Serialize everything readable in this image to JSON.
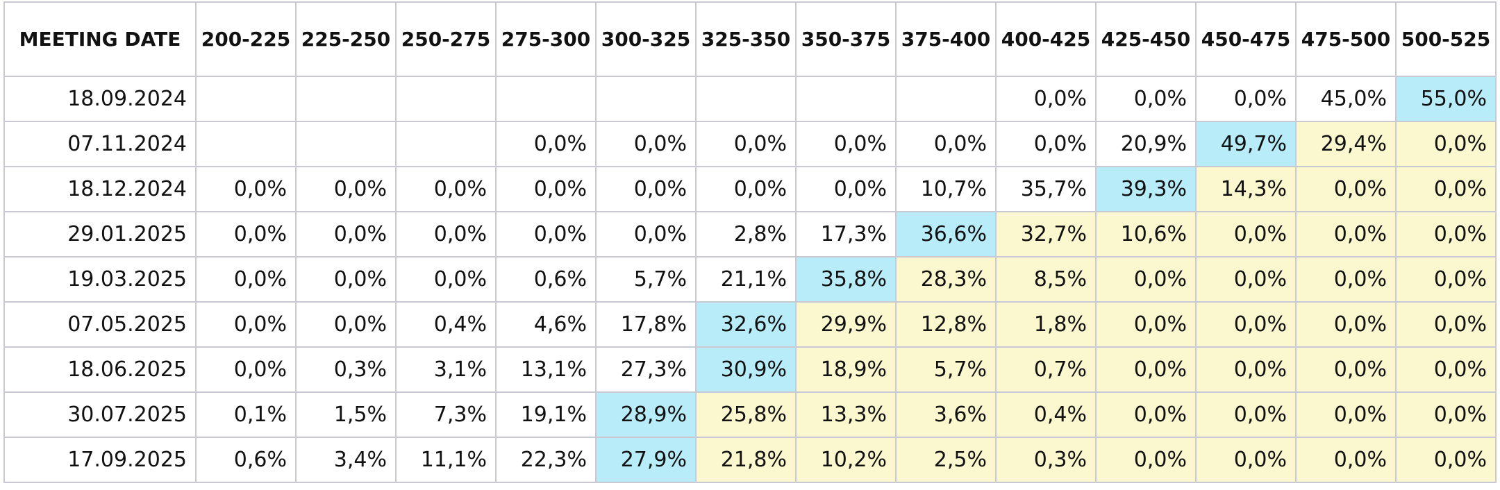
{
  "table": {
    "header": [
      "MEETING DATE",
      "200-225",
      "225-250",
      "250-275",
      "275-300",
      "300-325",
      "325-350",
      "350-375",
      "375-400",
      "400-425",
      "425-450",
      "450-475",
      "475-500",
      "500-525"
    ],
    "rows": [
      [
        "18.09.2024",
        null,
        null,
        null,
        null,
        null,
        null,
        null,
        null,
        "0,0%",
        "0,0%",
        "0,0%",
        "45,0%",
        "55,0%"
      ],
      [
        "07.11.2024",
        null,
        null,
        null,
        "0,0%",
        "0,0%",
        "0,0%",
        "0,0%",
        "0,0%",
        "0,0%",
        "20,9%",
        "49,7%",
        "29,4%",
        "0,0%"
      ],
      [
        "18.12.2024",
        "0,0%",
        "0,0%",
        "0,0%",
        "0,0%",
        "0,0%",
        "0,0%",
        "0,0%",
        "10,7%",
        "35,7%",
        "39,3%",
        "14,3%",
        "0,0%",
        "0,0%"
      ],
      [
        "29.01.2025",
        "0,0%",
        "0,0%",
        "0,0%",
        "0,0%",
        "0,0%",
        "2,8%",
        "17,3%",
        "36,6%",
        "32,7%",
        "10,6%",
        "0,0%",
        "0,0%",
        "0,0%"
      ],
      [
        "19.03.2025",
        "0,0%",
        "0,0%",
        "0,0%",
        "0,6%",
        "5,7%",
        "21,1%",
        "35,8%",
        "28,3%",
        "8,5%",
        "0,0%",
        "0,0%",
        "0,0%",
        "0,0%"
      ],
      [
        "07.05.2025",
        "0,0%",
        "0,0%",
        "0,4%",
        "4,6%",
        "17,8%",
        "32,6%",
        "29,9%",
        "12,8%",
        "1,8%",
        "0,0%",
        "0,0%",
        "0,0%",
        "0,0%"
      ],
      [
        "18.06.2025",
        "0,0%",
        "0,3%",
        "3,1%",
        "13,1%",
        "27,3%",
        "30,9%",
        "18,9%",
        "5,7%",
        "0,7%",
        "0,0%",
        "0,0%",
        "0,0%",
        "0,0%"
      ],
      [
        "30.07.2025",
        "0,1%",
        "1,5%",
        "7,3%",
        "19,1%",
        "28,9%",
        "25,8%",
        "13,3%",
        "3,6%",
        "0,4%",
        "0,0%",
        "0,0%",
        "0,0%",
        "0,0%"
      ],
      [
        "17.09.2025",
        "0,6%",
        "3,4%",
        "11,1%",
        "22,3%",
        "27,9%",
        "21,8%",
        "10,2%",
        "2,5%",
        "0,3%",
        "0,0%",
        "0,0%",
        "0,0%",
        "0,0%"
      ]
    ],
    "max_color": "#b9ecf9",
    "after_max_color": "#fbf8cf"
  }
}
